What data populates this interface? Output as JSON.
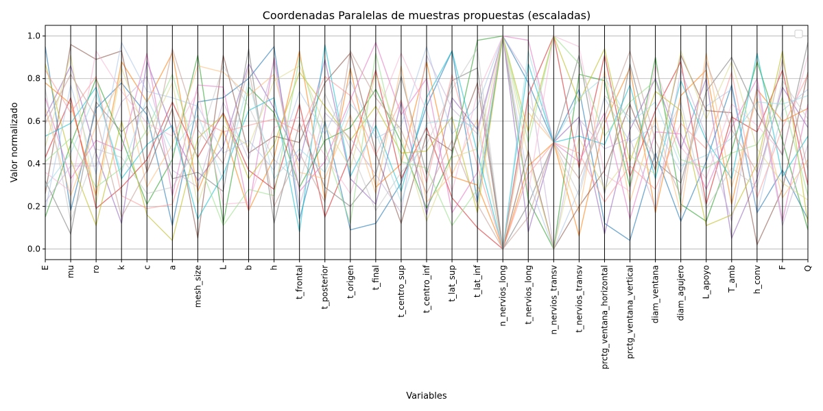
{
  "chart_data": {
    "type": "line",
    "subtype": "parallel-coordinates",
    "title": "Coordenadas Paralelas de muestras propuestas (escaladas)",
    "xlabel": "Variables",
    "ylabel": "Valor normalizado",
    "ylim": [
      -0.05,
      1.05
    ],
    "yticks": [
      "0.0",
      "0.2",
      "0.4",
      "0.6",
      "0.8",
      "1.0"
    ],
    "grid": true,
    "legend_position": "top-right",
    "legend_entries": [],
    "variables": [
      "E",
      "mu",
      "ro",
      "k",
      "c",
      "a",
      "mesh_size",
      "L",
      "b",
      "h",
      "t_frontal",
      "t_posterior",
      "t_origen",
      "t_final",
      "t_centro_sup",
      "t_centro_inf",
      "t_lat_sup",
      "t_lat_inf",
      "n_nervios_long",
      "t_nervios_long",
      "n_nervios_transv",
      "t_nervios_transv",
      "prctg_ventana_horizontal",
      "prctg_ventana_vertical",
      "diam_ventana",
      "diam_agujero",
      "L_apoyo",
      "T_amb",
      "h_conv",
      "F",
      "Q"
    ],
    "palette": [
      "#1f77b4",
      "#ff7f0e",
      "#2ca02c",
      "#d62728",
      "#9467bd",
      "#8c564b",
      "#e377c2",
      "#7f7f7f",
      "#bcbd22",
      "#17becf",
      "#aec7e8",
      "#ffbb78",
      "#98df8a",
      "#ff9896",
      "#c5b0d5",
      "#c49c94",
      "#f7b6d2",
      "#c7c7c7",
      "#dbdb8d",
      "#9edae5"
    ],
    "series": [
      {
        "values": [
          0.95,
          0.18,
          0.66,
          0.78,
          0.63,
          0.11,
          0.69,
          0.71,
          0.8,
          0.95,
          0.14,
          0.6,
          0.09,
          0.12,
          0.31,
          0.67,
          0.93,
          0.22,
          1.0,
          0.78,
          0.5,
          0.75,
          0.12,
          0.04,
          0.45,
          0.13,
          0.41,
          0.77,
          0.17,
          0.37,
          0.14
        ]
      },
      {
        "values": [
          0.78,
          0.68,
          0.25,
          0.88,
          0.69,
          0.92,
          0.27,
          0.56,
          0.18,
          0.43,
          0.93,
          0.23,
          0.85,
          0.29,
          0.4,
          0.88,
          0.34,
          0.3,
          0.0,
          0.39,
          0.5,
          0.06,
          0.59,
          0.85,
          0.17,
          0.72,
          0.84,
          0.21,
          0.75,
          0.6,
          0.66
        ]
      },
      {
        "values": [
          0.15,
          0.49,
          0.8,
          0.52,
          0.21,
          0.42,
          0.91,
          0.12,
          0.76,
          0.64,
          0.29,
          0.51,
          0.57,
          0.75,
          0.5,
          0.19,
          0.44,
          0.98,
          1.0,
          0.23,
          0.0,
          0.82,
          0.79,
          0.29,
          0.9,
          0.21,
          0.13,
          0.46,
          0.88,
          0.51,
          0.09
        ]
      },
      {
        "values": [
          0.43,
          0.71,
          0.19,
          0.29,
          0.42,
          0.69,
          0.43,
          0.64,
          0.37,
          0.28,
          0.68,
          0.15,
          0.44,
          0.84,
          0.33,
          0.57,
          0.24,
          0.1,
          0.0,
          0.72,
          1.0,
          0.38,
          0.91,
          0.34,
          0.65,
          0.88,
          0.21,
          0.62,
          0.55,
          0.84,
          0.3
        ]
      },
      {
        "values": [
          0.62,
          0.86,
          0.45,
          0.12,
          0.88,
          0.56,
          0.32,
          0.48,
          0.87,
          0.66,
          0.41,
          0.89,
          0.33,
          0.21,
          0.69,
          0.16,
          0.71,
          0.56,
          1.0,
          0.08,
          0.5,
          0.62,
          0.07,
          0.56,
          0.8,
          0.47,
          0.8,
          0.05,
          0.33,
          0.76,
          0.57
        ]
      },
      {
        "values": [
          0.26,
          0.96,
          0.89,
          0.93,
          0.36,
          0.66,
          0.05,
          0.91,
          0.45,
          0.53,
          0.5,
          0.78,
          0.92,
          0.45,
          0.12,
          0.54,
          0.46,
          0.78,
          0.0,
          0.46,
          0.0,
          0.2,
          0.37,
          0.68,
          0.37,
          0.91,
          0.65,
          0.64,
          0.02,
          0.28,
          0.83
        ]
      },
      {
        "values": [
          0.71,
          0.33,
          0.51,
          0.46,
          0.92,
          0.25,
          0.77,
          0.76,
          0.18,
          0.9,
          0.27,
          0.41,
          0.7,
          0.97,
          0.63,
          0.8,
          0.17,
          0.36,
          1.0,
          0.98,
          0.5,
          0.41,
          0.64,
          0.14,
          0.55,
          0.54,
          0.28,
          0.57,
          0.8,
          0.13,
          0.68
        ]
      },
      {
        "values": [
          0.32,
          0.07,
          0.69,
          0.55,
          0.67,
          0.33,
          0.36,
          0.27,
          0.94,
          0.12,
          0.59,
          0.29,
          0.2,
          0.35,
          0.81,
          0.35,
          0.79,
          0.85,
          0.0,
          0.21,
          0.5,
          0.91,
          0.26,
          0.87,
          0.41,
          0.31,
          0.74,
          0.9,
          0.64,
          0.44,
          0.97
        ]
      },
      {
        "values": [
          0.87,
          0.42,
          0.11,
          0.6,
          0.16,
          0.04,
          0.52,
          0.63,
          0.33,
          0.49,
          0.83,
          0.67,
          0.51,
          0.67,
          0.45,
          0.46,
          0.62,
          0.17,
          1.0,
          0.55,
          1.0,
          0.69,
          0.94,
          0.41,
          0.74,
          0.65,
          0.11,
          0.16,
          0.4,
          0.93,
          0.12
        ]
      },
      {
        "values": [
          0.53,
          0.59,
          0.76,
          0.33,
          0.49,
          0.58,
          0.14,
          0.35,
          0.65,
          0.71,
          0.08,
          0.96,
          0.34,
          0.58,
          0.27,
          0.71,
          0.93,
          0.45,
          0.0,
          0.87,
          0.5,
          0.53,
          0.49,
          0.77,
          0.33,
          0.79,
          0.51,
          0.33,
          0.92,
          0.34,
          0.53
        ]
      },
      {
        "values": [
          0.18,
          0.77,
          0.35,
          0.97,
          0.74,
          0.71,
          0.67,
          0.45,
          0.51,
          0.37,
          0.74,
          0.54,
          0.79,
          0.52,
          0.58,
          0.95,
          0.54,
          0.67,
          1.0,
          0.32,
          0.0,
          0.28,
          0.71,
          0.5,
          0.58,
          0.36,
          0.67,
          0.75,
          0.17,
          0.65,
          0.75
        ]
      },
      {
        "values": [
          0.66,
          0.25,
          0.58,
          0.8,
          0.29,
          0.49,
          0.86,
          0.83,
          0.72,
          0.82,
          0.36,
          0.33,
          0.63,
          0.26,
          0.86,
          0.22,
          0.35,
          0.61,
          0.0,
          0.64,
          0.5,
          0.17,
          0.84,
          0.22,
          0.62,
          0.17,
          0.92,
          0.29,
          0.71,
          0.24,
          0.42
        ]
      },
      {
        "values": [
          0.41,
          0.52,
          0.29,
          0.38,
          0.56,
          0.82,
          0.42,
          0.11,
          0.28,
          0.25,
          0.9,
          0.48,
          0.12,
          0.92,
          0.41,
          0.38,
          0.11,
          0.28,
          1.0,
          0.5,
          1.0,
          0.87,
          0.53,
          0.69,
          0.79,
          0.42,
          0.38,
          0.45,
          0.49,
          0.71,
          0.25
        ]
      },
      {
        "values": [
          0.84,
          0.64,
          0.81,
          0.25,
          0.19,
          0.21,
          0.61,
          0.55,
          0.58,
          0.61,
          0.55,
          0.81,
          0.72,
          0.44,
          0.7,
          0.31,
          0.82,
          0.39,
          0.0,
          0.35,
          0.5,
          0.45,
          0.22,
          0.39,
          0.28,
          0.59,
          0.47,
          0.83,
          0.24,
          0.57,
          0.82
        ]
      },
      {
        "values": [
          0.22,
          0.39,
          0.39,
          0.69,
          0.81,
          0.37,
          0.29,
          0.69,
          0.42,
          0.88,
          0.2,
          0.64,
          0.52,
          0.35,
          0.17,
          0.91,
          0.66,
          0.54,
          1.0,
          0.81,
          0.0,
          0.61,
          0.47,
          0.52,
          0.19,
          0.84,
          0.53,
          0.13,
          0.77,
          0.11,
          0.49
        ]
      },
      {
        "values": [
          0.59,
          0.82,
          0.62,
          0.15,
          0.37,
          0.94,
          0.56,
          0.4,
          0.85,
          0.2,
          0.45,
          0.22,
          0.93,
          0.71,
          0.56,
          0.26,
          0.51,
          0.21,
          0.0,
          0.15,
          0.5,
          0.33,
          0.62,
          0.93,
          0.51,
          0.25,
          0.88,
          0.56,
          0.36,
          0.89,
          0.37
        ]
      },
      {
        "values": [
          0.36,
          0.27,
          0.93,
          0.74,
          0.59,
          0.53,
          0.74,
          0.21,
          0.22,
          0.57,
          0.62,
          0.44,
          0.26,
          0.62,
          0.92,
          0.65,
          0.27,
          0.73,
          1.0,
          0.26,
          1.0,
          0.95,
          0.35,
          0.27,
          0.86,
          0.48,
          0.33,
          0.68,
          0.58,
          0.45,
          0.91
        ]
      },
      {
        "values": [
          0.75,
          0.13,
          0.47,
          0.43,
          0.26,
          0.29,
          0.48,
          0.86,
          0.67,
          0.42,
          0.31,
          0.73,
          0.47,
          0.18,
          0.36,
          0.49,
          0.75,
          0.94,
          0.0,
          0.68,
          0.5,
          0.25,
          0.72,
          0.62,
          0.43,
          0.69,
          0.19,
          0.38,
          0.29,
          0.79,
          0.61
        ]
      },
      {
        "values": [
          0.48,
          0.91,
          0.21,
          0.85,
          0.53,
          0.78,
          0.21,
          0.58,
          0.48,
          0.79,
          0.86,
          0.58,
          0.38,
          0.82,
          0.53,
          0.13,
          0.43,
          0.47,
          1.0,
          0.43,
          0.0,
          0.52,
          0.28,
          0.44,
          0.35,
          0.93,
          0.61,
          0.88,
          0.47,
          0.31,
          0.23
        ]
      },
      {
        "values": [
          0.29,
          0.45,
          0.73,
          0.36,
          0.71,
          0.46,
          0.63,
          0.32,
          0.79,
          0.33,
          0.47,
          0.36,
          0.68,
          0.55,
          0.22,
          0.59,
          0.61,
          0.57,
          0.0,
          0.93,
          0.5,
          0.71,
          0.81,
          0.59,
          0.69,
          0.39,
          0.44,
          0.52,
          0.69,
          0.68,
          0.72
        ]
      }
    ]
  }
}
